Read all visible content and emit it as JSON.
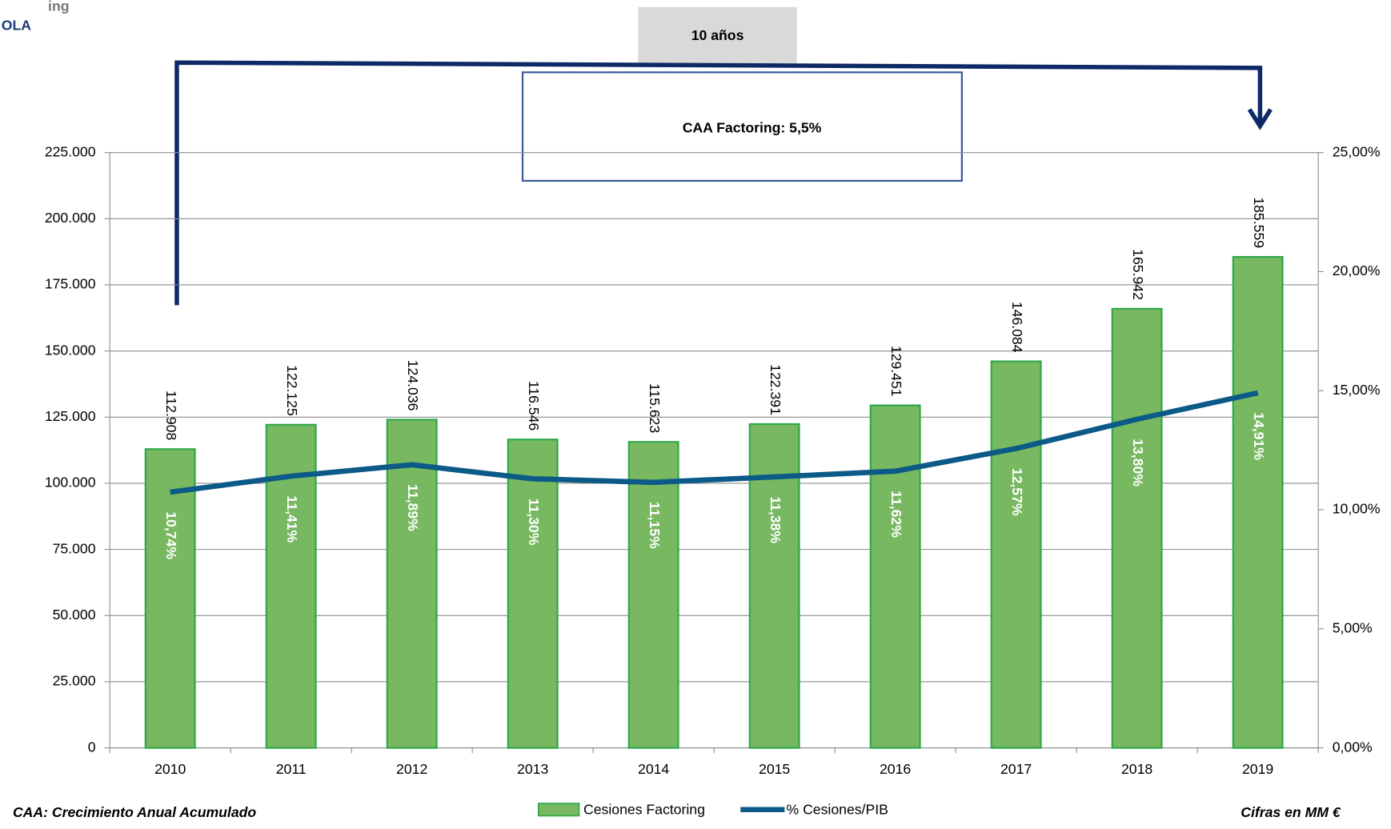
{
  "chart_data": {
    "type": "bar",
    "logo_text": [
      "ing",
      "OLA"
    ],
    "title": "10 años",
    "annotations": [
      "CAA Factoring: 5,5%",
      "CAA: Crecimiento Anual Acumulado",
      "Cifras en MM €"
    ],
    "categories": [
      "2010",
      "2011",
      "2012",
      "2013",
      "2014",
      "2015",
      "2016",
      "2017",
      "2018",
      "2019"
    ],
    "series": [
      {
        "name": "Cesiones Factoring",
        "type": "bar",
        "color": "#77b861",
        "values": [
          112908,
          122125,
          124036,
          116546,
          115623,
          122391,
          129451,
          146084,
          165942,
          185559
        ],
        "value_labels": [
          "112.908",
          "122.125",
          "124.036",
          "116.546",
          "115.623",
          "122.391",
          "129.451",
          "146.084",
          "165.942",
          "185.559"
        ]
      },
      {
        "name": "% Cesiones/PIB",
        "type": "line",
        "axis": "y2",
        "color": "#0b5a87",
        "values": [
          10.74,
          11.41,
          11.89,
          11.3,
          11.15,
          11.38,
          11.62,
          12.57,
          13.8,
          14.91
        ],
        "value_labels": [
          "10,74%",
          "11,41%",
          "11,89%",
          "11,30%",
          "11,15%",
          "11,38%",
          "11,62%",
          "12,57%",
          "13,80%",
          "14,91%"
        ]
      }
    ],
    "ylim": [
      0,
      225000
    ],
    "yticks": [
      0,
      {
        "value": 25000,
        "label": "25.000"
      },
      {
        "value": 50000,
        "label": "50.000"
      },
      {
        "value": 75000,
        "label": "75.000"
      },
      {
        "value": 100000,
        "label": "100.000"
      },
      {
        "value": 125000,
        "label": "125.000"
      },
      {
        "value": 150000,
        "label": "150.000"
      },
      {
        "value": 175000,
        "label": "175.000"
      },
      {
        "value": 200000,
        "label": "200.000"
      },
      {
        "value": 225000,
        "label": "225.000"
      }
    ],
    "y2lim": [
      0,
      25
    ],
    "y2ticks": [
      {
        "value": 0,
        "label": "0,00%"
      },
      {
        "value": 5,
        "label": "5,00%"
      },
      {
        "value": 10,
        "label": "10,00%"
      },
      {
        "value": 15,
        "label": "15,00%"
      },
      {
        "value": 20,
        "label": "20,00%"
      },
      {
        "value": 25,
        "label": "25,00%"
      }
    ],
    "grid": true,
    "legend": "bottom"
  }
}
